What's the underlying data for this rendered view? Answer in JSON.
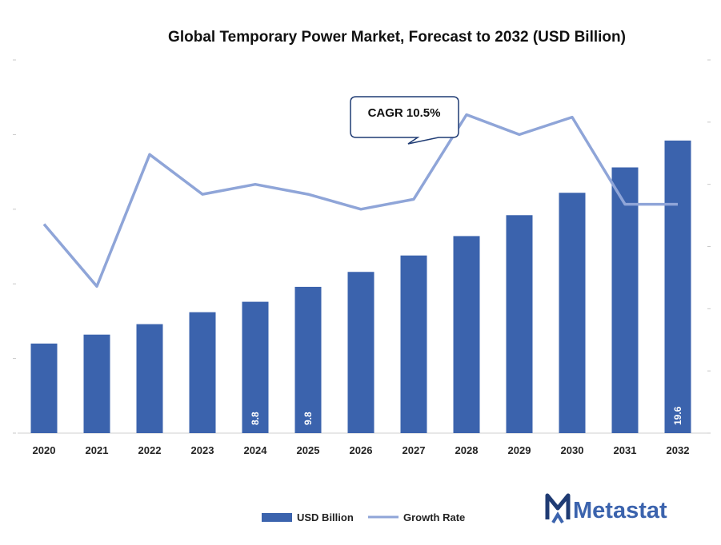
{
  "chart_data": {
    "type": "bar",
    "title": "Global Temporary Power Market, Forecast to 2032 (USD Billion)",
    "categories": [
      "2020",
      "2021",
      "2022",
      "2023",
      "2024",
      "2025",
      "2026",
      "2027",
      "2028",
      "2029",
      "2030",
      "2031",
      "2032"
    ],
    "series": [
      {
        "name": "USD Billion",
        "type": "bar",
        "color": "#3b63ad",
        "values": [
          6.0,
          6.6,
          7.3,
          8.1,
          8.8,
          9.8,
          10.8,
          11.9,
          13.2,
          14.6,
          16.1,
          17.8,
          19.6
        ]
      },
      {
        "name": "Growth Rate",
        "type": "line",
        "color": "#8fa5d8",
        "axis": "secondary",
        "values": [
          8.4,
          5.9,
          11.2,
          9.6,
          10.0,
          9.6,
          9.0,
          9.4,
          12.8,
          12.0,
          12.7,
          9.2,
          9.2
        ]
      }
    ],
    "data_labels": [
      {
        "category": "2024",
        "text": "8.8"
      },
      {
        "category": "2025",
        "text": "9.8"
      },
      {
        "category": "2032",
        "text": "19.6"
      }
    ],
    "ylim": [
      0,
      25
    ],
    "y2lim": [
      0,
      15
    ],
    "legend": {
      "position": "bottom",
      "entries": [
        "USD Billion",
        "Growth Rate"
      ]
    },
    "annotation": "CAGR 10.5%"
  },
  "brand": {
    "name": "Metastat",
    "color": "#3b63ad"
  }
}
